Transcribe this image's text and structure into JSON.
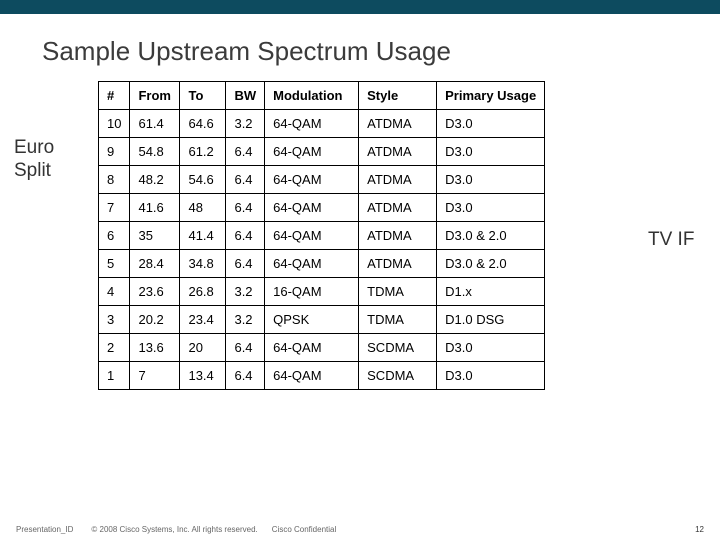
{
  "title": "Sample Upstream Spectrum Usage",
  "leftLabel": "Euro Split",
  "rightLabel": "TV IF",
  "table": {
    "headers": {
      "num": "#",
      "from": "From",
      "to": "To",
      "bw": "BW",
      "mod": "Modulation",
      "style": "Style",
      "usage": "Primary Usage"
    },
    "rows": [
      {
        "num": "10",
        "from": "61.4",
        "to": "64.6",
        "bw": "3.2",
        "mod": "64-QAM",
        "style": "ATDMA",
        "usage": "D3.0"
      },
      {
        "num": "9",
        "from": "54.8",
        "to": "61.2",
        "bw": "6.4",
        "mod": "64-QAM",
        "style": "ATDMA",
        "usage": "D3.0"
      },
      {
        "num": "8",
        "from": "48.2",
        "to": "54.6",
        "bw": "6.4",
        "mod": "64-QAM",
        "style": "ATDMA",
        "usage": "D3.0"
      },
      {
        "num": "7",
        "from": "41.6",
        "to": "48",
        "bw": "6.4",
        "mod": "64-QAM",
        "style": "ATDMA",
        "usage": "D3.0"
      },
      {
        "num": "6",
        "from": "35",
        "to": "41.4",
        "bw": "6.4",
        "mod": "64-QAM",
        "style": "ATDMA",
        "usage": "D3.0 & 2.0"
      },
      {
        "num": "5",
        "from": "28.4",
        "to": "34.8",
        "bw": "6.4",
        "mod": "64-QAM",
        "style": "ATDMA",
        "usage": "D3.0 & 2.0"
      },
      {
        "num": "4",
        "from": "23.6",
        "to": "26.8",
        "bw": "3.2",
        "mod": "16-QAM",
        "style": "TDMA",
        "usage": "D1.x"
      },
      {
        "num": "3",
        "from": "20.2",
        "to": "23.4",
        "bw": "3.2",
        "mod": "QPSK",
        "style": "TDMA",
        "usage": "D1.0 DSG"
      },
      {
        "num": "2",
        "from": "13.6",
        "to": "20",
        "bw": "6.4",
        "mod": "64-QAM",
        "style": "SCDMA",
        "usage": "D3.0"
      },
      {
        "num": "1",
        "from": "7",
        "to": "13.4",
        "bw": "6.4",
        "mod": "64-QAM",
        "style": "SCDMA",
        "usage": "D3.0"
      }
    ]
  },
  "footer": {
    "pid": "Presentation_ID",
    "copy": "© 2008 Cisco Systems, Inc. All rights reserved.",
    "conf": "Cisco Confidential",
    "page": "12"
  }
}
